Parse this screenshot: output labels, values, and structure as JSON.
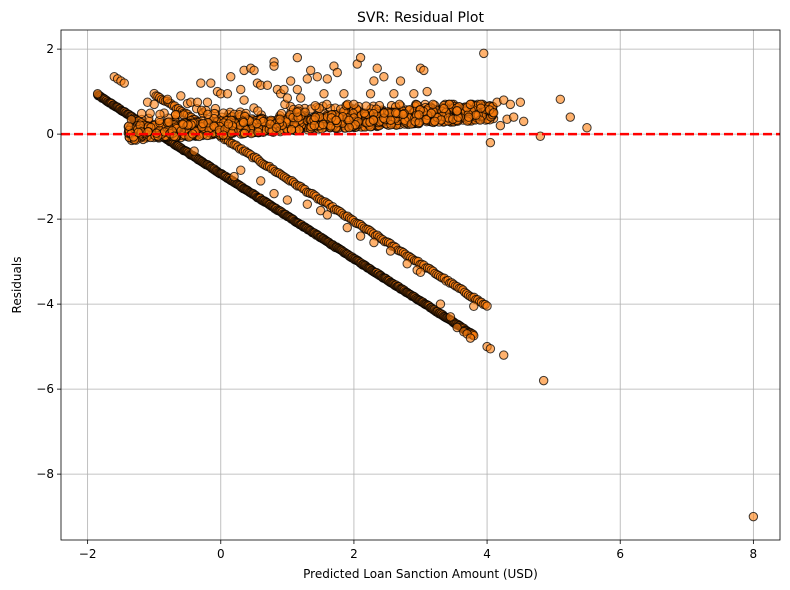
{
  "chart_data": {
    "type": "scatter",
    "title": "SVR: Residual Plot",
    "xlabel": "Predicted Loan Sanction Amount (USD)",
    "ylabel": "Residuals",
    "xlim": [
      -2.4,
      8.4
    ],
    "ylim": [
      -9.55,
      2.45
    ],
    "xticks": [
      -2,
      0,
      2,
      4,
      6,
      8
    ],
    "yticks": [
      -8,
      -6,
      -4,
      -2,
      0,
      2
    ],
    "xtick_labels": [
      "−2",
      "0",
      "2",
      "4",
      "6",
      "8"
    ],
    "ytick_labels": [
      "−8",
      "−6",
      "−4",
      "−2",
      "0",
      "2"
    ],
    "grid": true,
    "reference_line": {
      "y": 0,
      "color": "#ff0000",
      "style": "dashed"
    },
    "marker": {
      "fill": "#ff7f0e",
      "edge": "#000000",
      "alpha": 0.6
    },
    "pattern": {
      "lower_band": {
        "x_from": -1.85,
        "x_to": 3.8,
        "slope": -1.0,
        "intercept": -0.93,
        "spread": 0.03,
        "count": 500
      },
      "upper_band": {
        "x_from": -1.0,
        "x_to": 4.0,
        "slope": -1.0,
        "intercept": -0.05,
        "spread": 0.05,
        "count": 180
      },
      "main_cluster": {
        "x_from": -1.4,
        "x_to": 4.1,
        "y_from": -0.2,
        "y_to": 0.7,
        "count": 1400
      }
    },
    "points": [
      [
        -1.85,
        0.95
      ],
      [
        -1.6,
        1.35
      ],
      [
        -1.55,
        1.3
      ],
      [
        -1.5,
        1.25
      ],
      [
        -1.45,
        1.2
      ],
      [
        -1.1,
        0.75
      ],
      [
        -1.0,
        0.7
      ],
      [
        -0.8,
        0.82
      ],
      [
        -0.6,
        0.9
      ],
      [
        -0.5,
        0.72
      ],
      [
        -0.45,
        0.75
      ],
      [
        -0.35,
        0.75
      ],
      [
        -0.3,
        1.2
      ],
      [
        -0.2,
        0.75
      ],
      [
        -0.15,
        1.2
      ],
      [
        -0.05,
        1.0
      ],
      [
        0.0,
        0.95
      ],
      [
        0.1,
        0.95
      ],
      [
        0.15,
        1.35
      ],
      [
        0.3,
        1.05
      ],
      [
        0.35,
        1.5
      ],
      [
        0.35,
        0.8
      ],
      [
        0.45,
        1.55
      ],
      [
        0.5,
        1.5
      ],
      [
        0.55,
        1.2
      ],
      [
        0.6,
        1.15
      ],
      [
        0.7,
        1.15
      ],
      [
        0.8,
        1.7
      ],
      [
        0.8,
        1.6
      ],
      [
        0.85,
        1.05
      ],
      [
        0.9,
        0.95
      ],
      [
        0.95,
        1.05
      ],
      [
        1.0,
        0.85
      ],
      [
        1.05,
        1.25
      ],
      [
        1.15,
        1.8
      ],
      [
        1.15,
        1.05
      ],
      [
        1.2,
        0.85
      ],
      [
        1.3,
        1.3
      ],
      [
        1.35,
        1.5
      ],
      [
        1.45,
        1.35
      ],
      [
        1.55,
        0.95
      ],
      [
        1.6,
        1.3
      ],
      [
        1.7,
        1.6
      ],
      [
        1.75,
        1.45
      ],
      [
        1.85,
        0.95
      ],
      [
        2.05,
        1.65
      ],
      [
        2.1,
        1.8
      ],
      [
        2.25,
        0.95
      ],
      [
        2.3,
        1.25
      ],
      [
        2.35,
        1.55
      ],
      [
        2.45,
        1.35
      ],
      [
        2.6,
        0.95
      ],
      [
        2.7,
        1.25
      ],
      [
        2.9,
        0.95
      ],
      [
        3.0,
        1.55
      ],
      [
        3.05,
        1.5
      ],
      [
        3.1,
        1.0
      ],
      [
        3.35,
        0.6
      ],
      [
        3.55,
        0.55
      ],
      [
        3.95,
        1.9
      ],
      [
        4.05,
        -0.2
      ],
      [
        4.1,
        0.5
      ],
      [
        4.15,
        0.75
      ],
      [
        4.2,
        0.2
      ],
      [
        4.25,
        0.8
      ],
      [
        4.3,
        0.35
      ],
      [
        4.35,
        0.7
      ],
      [
        4.4,
        0.4
      ],
      [
        4.5,
        0.75
      ],
      [
        4.55,
        0.3
      ],
      [
        4.8,
        -0.05
      ],
      [
        5.1,
        0.82
      ],
      [
        5.25,
        0.4
      ],
      [
        5.5,
        0.15
      ],
      [
        -0.7,
        -0.05
      ],
      [
        -0.4,
        -0.4
      ],
      [
        0.2,
        -1.0
      ],
      [
        0.3,
        -0.85
      ],
      [
        0.6,
        -1.1
      ],
      [
        0.8,
        -1.4
      ],
      [
        1.0,
        -1.55
      ],
      [
        1.3,
        -1.65
      ],
      [
        1.5,
        -1.8
      ],
      [
        1.6,
        -1.9
      ],
      [
        1.9,
        -2.2
      ],
      [
        2.1,
        -2.4
      ],
      [
        2.3,
        -2.55
      ],
      [
        2.55,
        -2.75
      ],
      [
        2.8,
        -3.05
      ],
      [
        2.95,
        -3.2
      ],
      [
        3.0,
        -3.25
      ],
      [
        3.3,
        -4.0
      ],
      [
        3.45,
        -4.3
      ],
      [
        3.55,
        -4.55
      ],
      [
        3.65,
        -4.65
      ],
      [
        3.7,
        -4.7
      ],
      [
        3.75,
        -4.8
      ],
      [
        3.8,
        -4.05
      ],
      [
        4.0,
        -5.0
      ],
      [
        4.05,
        -5.05
      ],
      [
        4.25,
        -5.2
      ],
      [
        4.85,
        -5.8
      ],
      [
        8.0,
        -9.0
      ]
    ]
  }
}
